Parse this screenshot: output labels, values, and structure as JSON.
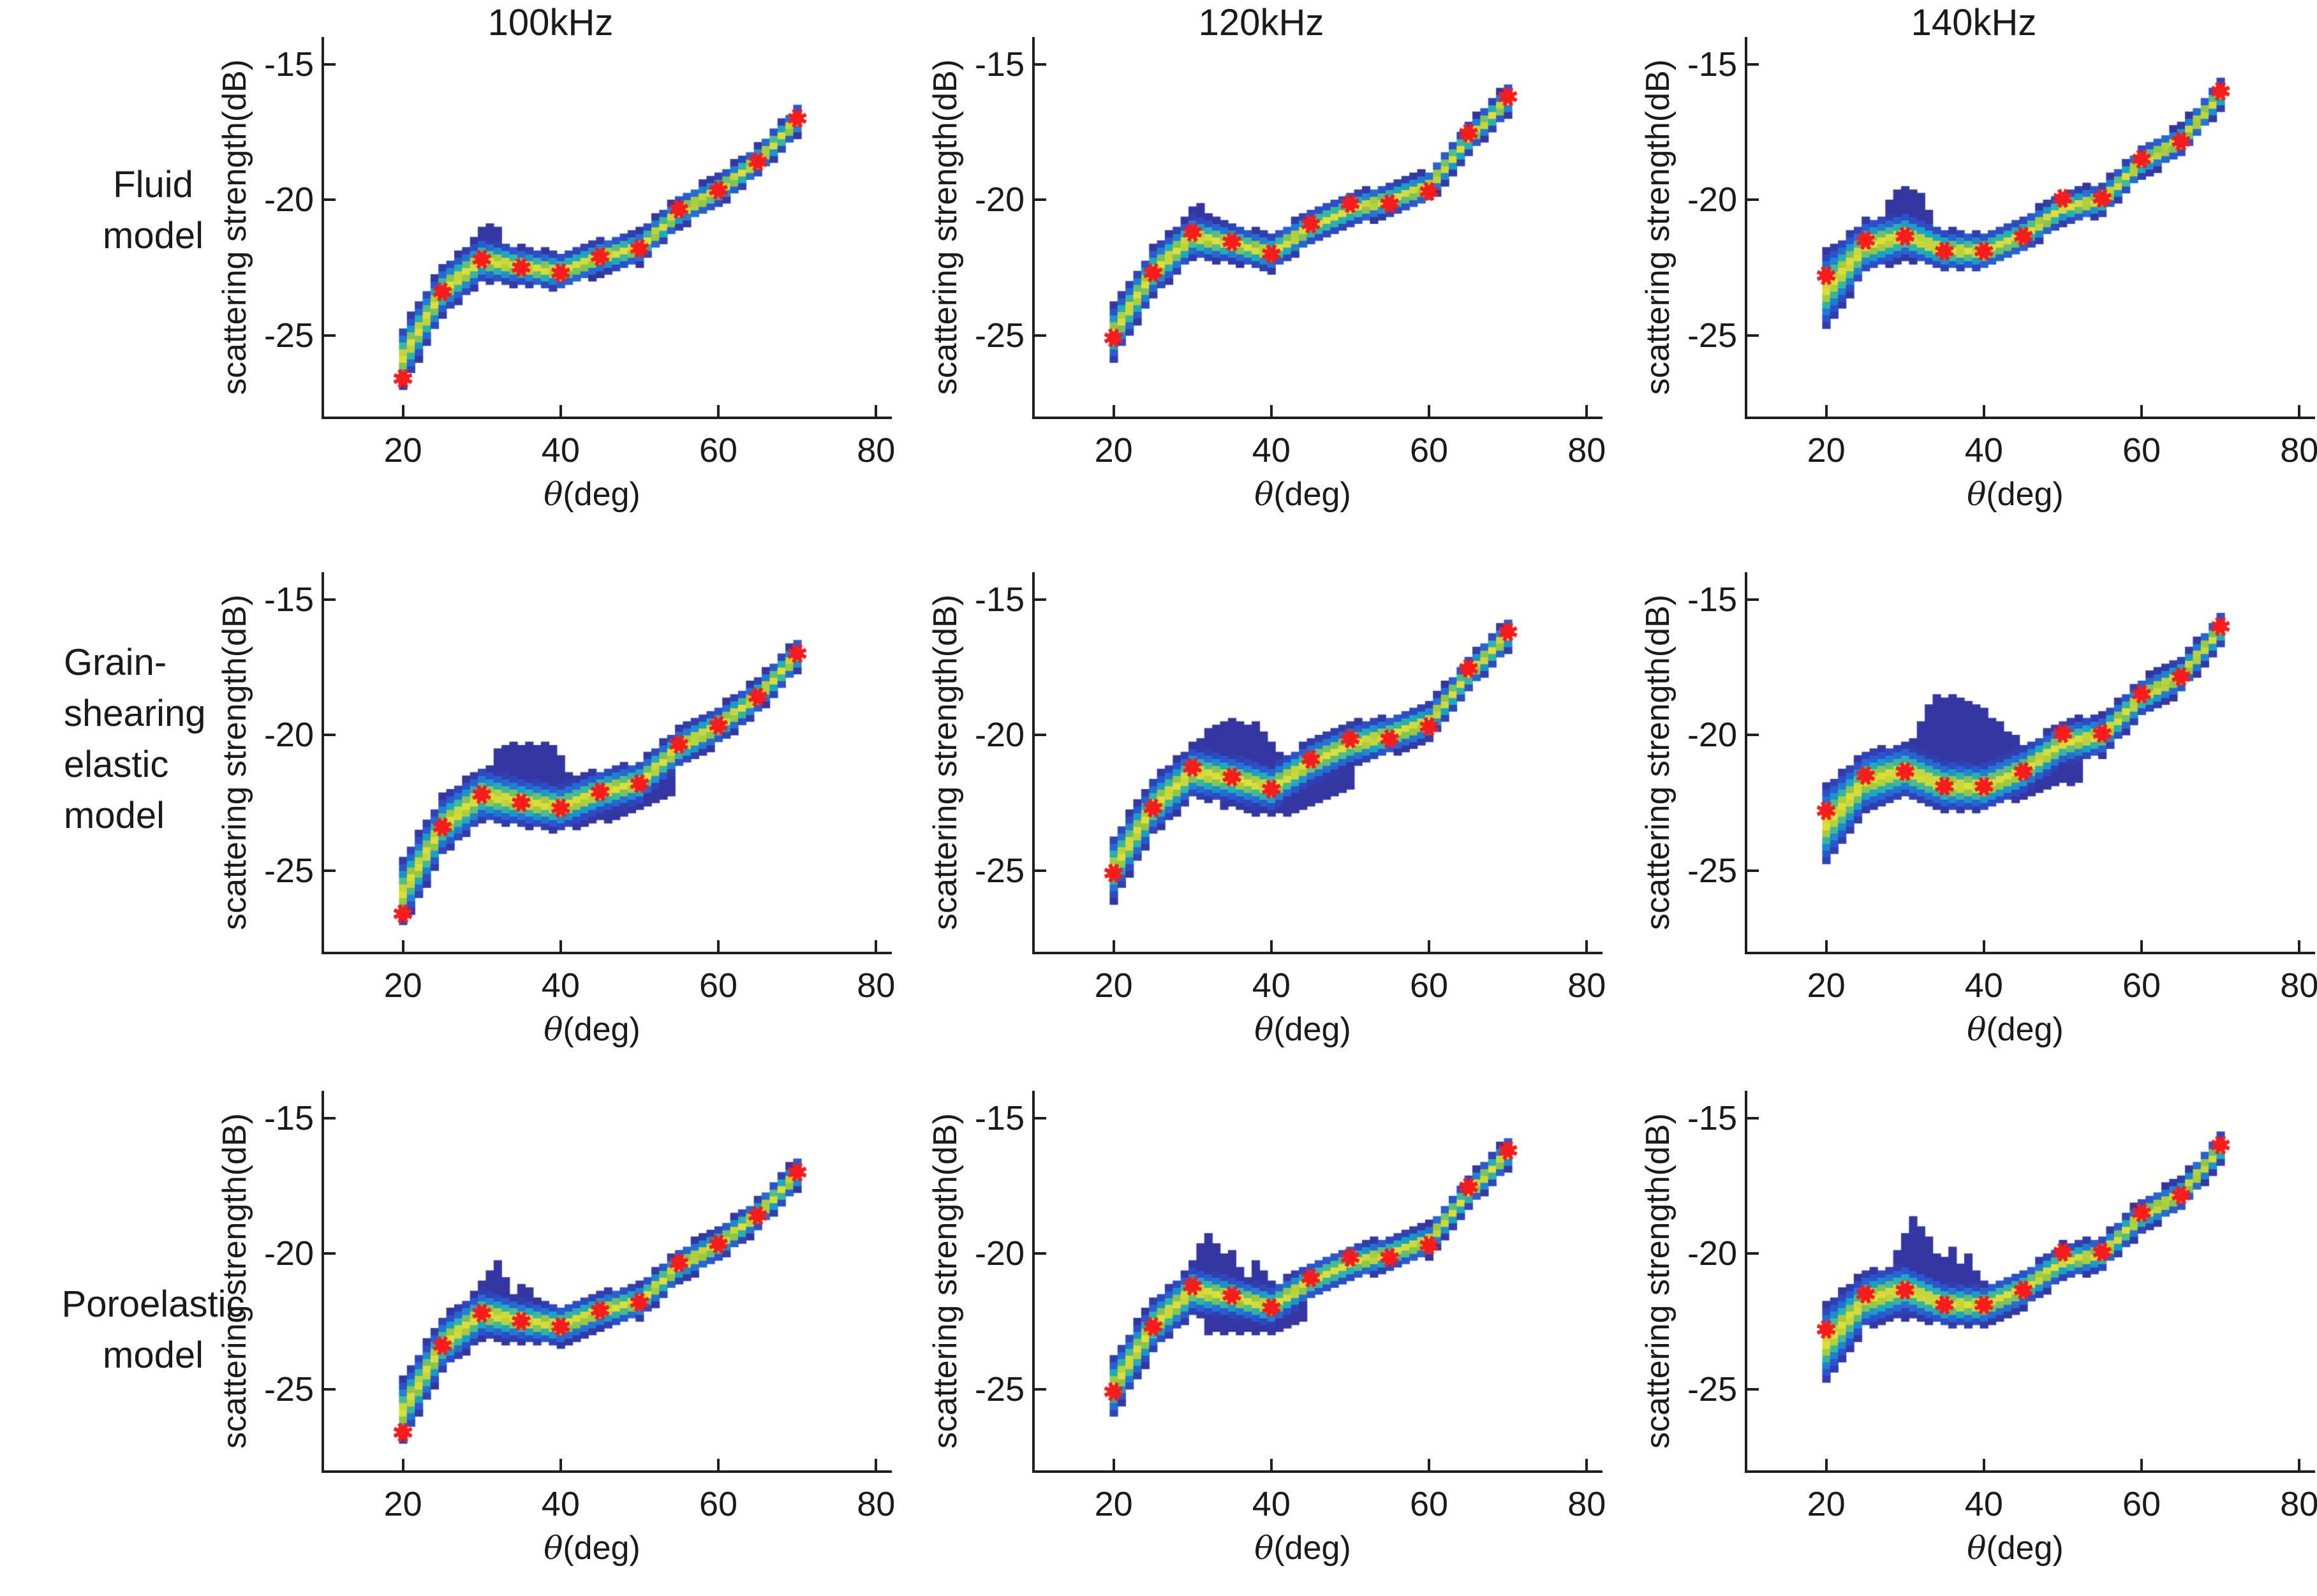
{
  "figure": {
    "background": "#ffffff",
    "axis_color": "#1f1f1f",
    "marker_color": "#fa1b1b",
    "colormap_stops": [
      [
        0.105,
        "#35349d"
      ],
      [
        0.3,
        "#2c51d0"
      ],
      [
        0.48,
        "#2079d6"
      ],
      [
        0.62,
        "#17a8c3"
      ],
      [
        0.76,
        "#3fba97"
      ],
      [
        0.88,
        "#9ac93f"
      ],
      [
        1.0,
        "#e0de38"
      ]
    ],
    "col_titles": [
      "100kHz",
      "120kHz",
      "140kHz"
    ],
    "row_labels": [
      {
        "lines": [
          "Fluid",
          "model"
        ],
        "align": "center"
      },
      {
        "lines": [
          "Grain-",
          "shearing",
          "elastic",
          "model"
        ],
        "align": "left"
      },
      {
        "lines": [
          "Poroelastic",
          "model"
        ],
        "align": "center"
      }
    ],
    "xlabel_theta": "θ",
    "xlabel_rest": "(deg)",
    "ylabel": "scattering strength(dB)",
    "xtick_labels": [
      "20",
      "40",
      "60",
      "80"
    ],
    "ytick_labels": [
      "-15",
      "-20",
      "-25"
    ]
  },
  "chart_data": [
    {
      "type": "heatmap",
      "title": "100kHz",
      "row_label": "Fluid model",
      "xlabel": "θ(deg)",
      "ylabel": "scattering strength(dB)",
      "xlim": [
        10,
        82
      ],
      "ylim": [
        -28,
        -14
      ],
      "xticks": [
        20,
        40,
        60,
        80
      ],
      "yticks": [
        -15,
        -20,
        -25
      ],
      "grid": false,
      "legend": null,
      "theta": [
        20,
        25,
        30,
        35,
        40,
        45,
        50,
        55,
        60,
        65,
        70
      ],
      "markers_db": [
        -26.6,
        -23.4,
        -22.2,
        -22.5,
        -22.7,
        -22.1,
        -21.8,
        -20.35,
        -19.65,
        -18.6,
        -17.0
      ],
      "band_center": [
        -25.8,
        -23.35,
        -22.2,
        -22.45,
        -22.65,
        -22.1,
        -21.75,
        -20.45,
        -19.65,
        -18.55,
        -17.05
      ],
      "band_sigma": [
        0.55,
        0.45,
        0.4,
        0.34,
        0.33,
        0.31,
        0.3,
        0.29,
        0.29,
        0.28,
        0.28
      ],
      "bump_top": [
        [
          28,
          -21.9
        ],
        [
          29,
          -21.4
        ],
        [
          30,
          -21.1
        ],
        [
          31,
          -20.9
        ],
        [
          32,
          -21.0
        ],
        [
          33,
          -21.6
        ],
        [
          34,
          -22.0
        ]
      ],
      "sag_bottom": null
    },
    {
      "type": "heatmap",
      "title": "120kHz",
      "row_label": "Fluid model",
      "xlabel": "θ(deg)",
      "ylabel": "scattering strength(dB)",
      "xlim": [
        10,
        82
      ],
      "ylim": [
        -28,
        -14
      ],
      "xticks": [
        20,
        40,
        60,
        80
      ],
      "yticks": [
        -15,
        -20,
        -25
      ],
      "grid": false,
      "legend": null,
      "theta": [
        20,
        25,
        30,
        35,
        40,
        45,
        50,
        55,
        60,
        65,
        70
      ],
      "markers_db": [
        -25.1,
        -22.7,
        -21.2,
        -21.55,
        -22.0,
        -20.9,
        -20.15,
        -20.15,
        -19.7,
        -17.55,
        -16.2
      ],
      "band_center": [
        -24.9,
        -22.65,
        -21.35,
        -21.6,
        -21.95,
        -21.0,
        -20.35,
        -20.0,
        -19.5,
        -17.75,
        -16.3
      ],
      "band_sigma": [
        0.5,
        0.44,
        0.4,
        0.34,
        0.33,
        0.31,
        0.3,
        0.29,
        0.29,
        0.28,
        0.28
      ],
      "bump_top": [
        [
          27,
          -21.6
        ],
        [
          28,
          -21.0
        ],
        [
          29,
          -20.5
        ],
        [
          30,
          -20.25
        ],
        [
          31,
          -20.2
        ],
        [
          32,
          -20.6
        ],
        [
          33,
          -21.0
        ],
        [
          34,
          -21.3
        ]
      ],
      "sag_bottom": null
    },
    {
      "type": "heatmap",
      "title": "140kHz",
      "row_label": "Fluid model",
      "xlabel": "θ(deg)",
      "ylabel": "scattering strength(dB)",
      "xlim": [
        10,
        82
      ],
      "ylim": [
        -28,
        -14
      ],
      "xticks": [
        20,
        40,
        60,
        80
      ],
      "yticks": [
        -15,
        -20,
        -25
      ],
      "grid": false,
      "legend": null,
      "theta": [
        20,
        25,
        30,
        35,
        40,
        45,
        50,
        55,
        60,
        65,
        70
      ],
      "markers_db": [
        -22.8,
        -21.5,
        -21.35,
        -21.9,
        -21.9,
        -21.35,
        -19.95,
        -19.95,
        -18.5,
        -17.85,
        -16.0
      ],
      "band_center": [
        -23.3,
        -21.7,
        -21.3,
        -21.85,
        -21.9,
        -21.3,
        -20.3,
        -20.0,
        -18.6,
        -17.8,
        -16.1
      ],
      "band_sigma": [
        0.68,
        0.48,
        0.42,
        0.36,
        0.34,
        0.32,
        0.3,
        0.29,
        0.29,
        0.28,
        0.28
      ],
      "bump_top": [
        [
          26,
          -21.1
        ],
        [
          27,
          -20.5
        ],
        [
          28,
          -20.0
        ],
        [
          29,
          -19.7
        ],
        [
          30,
          -19.5
        ],
        [
          31,
          -19.5
        ],
        [
          32,
          -19.8
        ],
        [
          33,
          -20.4
        ],
        [
          34,
          -21.0
        ],
        [
          35,
          -21.4
        ]
      ],
      "sag_bottom": null
    },
    {
      "type": "heatmap",
      "title": "",
      "row_label": "Grain-shearing elastic model",
      "xlabel": "θ(deg)",
      "ylabel": "scattering strength(dB)",
      "xlim": [
        10,
        82
      ],
      "ylim": [
        -28,
        -14
      ],
      "xticks": [
        20,
        40,
        60,
        80
      ],
      "yticks": [
        -15,
        -20,
        -25
      ],
      "grid": false,
      "legend": null,
      "theta": [
        20,
        25,
        30,
        35,
        40,
        45,
        50,
        55,
        60,
        65,
        70
      ],
      "markers_db": [
        -26.6,
        -23.4,
        -22.2,
        -22.5,
        -22.7,
        -22.1,
        -21.8,
        -20.35,
        -19.65,
        -18.6,
        -17.0
      ],
      "band_center": [
        -25.8,
        -23.35,
        -22.2,
        -22.45,
        -22.65,
        -22.1,
        -21.75,
        -20.45,
        -19.65,
        -18.55,
        -17.05
      ],
      "band_sigma": [
        0.62,
        0.52,
        0.48,
        0.44,
        0.42,
        0.4,
        0.38,
        0.35,
        0.33,
        0.31,
        0.3
      ],
      "bump_top": [
        [
          30,
          -21.8
        ],
        [
          31,
          -21.2
        ],
        [
          32,
          -20.6
        ],
        [
          33,
          -20.3
        ],
        [
          36,
          -20.25
        ],
        [
          39,
          -20.3
        ],
        [
          40,
          -20.8
        ],
        [
          41,
          -21.4
        ],
        [
          42,
          -21.9
        ]
      ],
      "sag_bottom": [
        [
          34,
          -23.0
        ],
        [
          38,
          -23.3
        ],
        [
          42,
          -23.4
        ],
        [
          46,
          -23.2
        ],
        [
          50,
          -22.8
        ],
        [
          54,
          -22.2
        ]
      ]
    },
    {
      "type": "heatmap",
      "title": "",
      "row_label": "Grain-shearing elastic model",
      "xlabel": "θ(deg)",
      "ylabel": "scattering strength(dB)",
      "xlim": [
        10,
        82
      ],
      "ylim": [
        -28,
        -14
      ],
      "xticks": [
        20,
        40,
        60,
        80
      ],
      "yticks": [
        -15,
        -20,
        -25
      ],
      "grid": false,
      "legend": null,
      "theta": [
        20,
        25,
        30,
        35,
        40,
        45,
        50,
        55,
        60,
        65,
        70
      ],
      "markers_db": [
        -25.1,
        -22.7,
        -21.2,
        -21.55,
        -22.0,
        -20.9,
        -20.15,
        -20.15,
        -19.7,
        -17.55,
        -16.2
      ],
      "band_center": [
        -24.9,
        -22.65,
        -21.35,
        -21.6,
        -21.95,
        -21.0,
        -20.35,
        -20.0,
        -19.5,
        -17.75,
        -16.3
      ],
      "band_sigma": [
        0.58,
        0.5,
        0.46,
        0.44,
        0.42,
        0.4,
        0.38,
        0.35,
        0.33,
        0.31,
        0.3
      ],
      "bump_top": [
        [
          29,
          -21.1
        ],
        [
          30,
          -20.6
        ],
        [
          31,
          -20.1
        ],
        [
          32,
          -19.7
        ],
        [
          33,
          -19.5
        ],
        [
          36,
          -19.4
        ],
        [
          38,
          -19.6
        ],
        [
          40,
          -20.2
        ],
        [
          42,
          -20.8
        ],
        [
          44,
          -21.3
        ]
      ],
      "sag_bottom": [
        [
          34,
          -22.7
        ],
        [
          38,
          -22.9
        ],
        [
          42,
          -22.9
        ],
        [
          46,
          -22.6
        ],
        [
          50,
          -22.1
        ]
      ]
    },
    {
      "type": "heatmap",
      "title": "",
      "row_label": "Grain-shearing elastic model",
      "xlabel": "θ(deg)",
      "ylabel": "scattering strength(dB)",
      "xlim": [
        10,
        82
      ],
      "ylim": [
        -28,
        -14
      ],
      "xticks": [
        20,
        40,
        60,
        80
      ],
      "yticks": [
        -15,
        -20,
        -25
      ],
      "grid": false,
      "legend": null,
      "theta": [
        20,
        25,
        30,
        35,
        40,
        45,
        50,
        55,
        60,
        65,
        70
      ],
      "markers_db": [
        -22.8,
        -21.5,
        -21.35,
        -21.9,
        -21.9,
        -21.35,
        -19.95,
        -19.95,
        -18.5,
        -17.85,
        -16.0
      ],
      "band_center": [
        -23.3,
        -21.7,
        -21.3,
        -21.85,
        -21.9,
        -21.3,
        -20.3,
        -20.0,
        -18.6,
        -17.8,
        -16.1
      ],
      "band_sigma": [
        0.72,
        0.54,
        0.48,
        0.46,
        0.44,
        0.42,
        0.4,
        0.36,
        0.33,
        0.31,
        0.3
      ],
      "bump_top": [
        [
          30,
          -20.6
        ],
        [
          31,
          -20.0
        ],
        [
          32,
          -19.4
        ],
        [
          33,
          -18.9
        ],
        [
          34,
          -18.6
        ],
        [
          36,
          -18.5
        ],
        [
          40,
          -18.9
        ],
        [
          42,
          -19.6
        ],
        [
          44,
          -20.1
        ],
        [
          46,
          -20.4
        ]
      ],
      "sag_bottom": [
        [
          32,
          -22.4
        ],
        [
          36,
          -22.7
        ],
        [
          40,
          -22.7
        ],
        [
          44,
          -22.4
        ],
        [
          48,
          -22.0
        ],
        [
          52,
          -21.7
        ]
      ]
    },
    {
      "type": "heatmap",
      "title": "",
      "row_label": "Poroelastic model",
      "xlabel": "θ(deg)",
      "ylabel": "scattering strength(dB)",
      "xlim": [
        10,
        82
      ],
      "ylim": [
        -28,
        -14
      ],
      "xticks": [
        20,
        40,
        60,
        80
      ],
      "yticks": [
        -15,
        -20,
        -25
      ],
      "grid": false,
      "legend": null,
      "theta": [
        20,
        25,
        30,
        35,
        40,
        45,
        50,
        55,
        60,
        65,
        70
      ],
      "markers_db": [
        -26.6,
        -23.4,
        -22.2,
        -22.5,
        -22.7,
        -22.1,
        -21.8,
        -20.35,
        -19.65,
        -18.6,
        -17.0
      ],
      "band_center": [
        -25.8,
        -23.35,
        -22.2,
        -22.45,
        -22.65,
        -22.1,
        -21.75,
        -20.45,
        -19.65,
        -18.55,
        -17.05
      ],
      "band_sigma": [
        0.58,
        0.48,
        0.44,
        0.38,
        0.36,
        0.33,
        0.32,
        0.3,
        0.3,
        0.29,
        0.29
      ],
      "bump_top": [
        [
          28,
          -22.0
        ],
        [
          29,
          -21.4
        ],
        [
          30,
          -20.9
        ],
        [
          31,
          -20.5
        ],
        [
          32,
          -20.35
        ],
        [
          33,
          -20.9
        ],
        [
          34,
          -21.4
        ],
        [
          35,
          -21.0
        ],
        [
          36,
          -21.3
        ],
        [
          37,
          -21.8
        ],
        [
          38,
          -22.1
        ]
      ],
      "sag_bottom": [
        [
          32,
          -23.3
        ],
        [
          36,
          -23.3
        ],
        [
          40,
          -23.3
        ],
        [
          44,
          -22.8
        ]
      ]
    },
    {
      "type": "heatmap",
      "title": "",
      "row_label": "Poroelastic model",
      "xlabel": "θ(deg)",
      "ylabel": "scattering strength(dB)",
      "xlim": [
        10,
        82
      ],
      "ylim": [
        -28,
        -14
      ],
      "xticks": [
        20,
        40,
        60,
        80
      ],
      "yticks": [
        -15,
        -20,
        -25
      ],
      "grid": false,
      "legend": null,
      "theta": [
        20,
        25,
        30,
        35,
        40,
        45,
        50,
        55,
        60,
        65,
        70
      ],
      "markers_db": [
        -25.1,
        -22.7,
        -21.2,
        -21.55,
        -22.0,
        -20.9,
        -20.15,
        -20.15,
        -19.7,
        -17.55,
        -16.2
      ],
      "band_center": [
        -24.9,
        -22.65,
        -21.35,
        -21.6,
        -21.95,
        -21.0,
        -20.35,
        -20.0,
        -19.5,
        -17.75,
        -16.3
      ],
      "band_sigma": [
        0.55,
        0.47,
        0.43,
        0.38,
        0.36,
        0.33,
        0.32,
        0.3,
        0.3,
        0.29,
        0.29
      ],
      "bump_top": [
        [
          28,
          -21.3
        ],
        [
          29,
          -20.7
        ],
        [
          30,
          -20.2
        ],
        [
          31,
          -19.6
        ],
        [
          32,
          -19.35
        ],
        [
          33,
          -19.6
        ],
        [
          34,
          -20.1
        ],
        [
          35,
          -19.9
        ],
        [
          36,
          -20.5
        ],
        [
          37,
          -20.9
        ],
        [
          38,
          -20.2
        ],
        [
          39,
          -20.6
        ],
        [
          40,
          -21.1
        ],
        [
          41,
          -21.5
        ]
      ],
      "sag_bottom": [
        [
          32,
          -22.9
        ],
        [
          36,
          -23.0
        ],
        [
          40,
          -22.9
        ],
        [
          44,
          -22.4
        ]
      ]
    },
    {
      "type": "heatmap",
      "title": "",
      "row_label": "Poroelastic model",
      "xlabel": "θ(deg)",
      "ylabel": "scattering strength(dB)",
      "xlim": [
        10,
        82
      ],
      "ylim": [
        -28,
        -14
      ],
      "xticks": [
        20,
        40,
        60,
        80
      ],
      "yticks": [
        -15,
        -20,
        -25
      ],
      "grid": false,
      "legend": null,
      "theta": [
        20,
        25,
        30,
        35,
        40,
        45,
        50,
        55,
        60,
        65,
        70
      ],
      "markers_db": [
        -22.8,
        -21.5,
        -21.35,
        -21.9,
        -21.9,
        -21.35,
        -19.95,
        -19.95,
        -18.5,
        -17.85,
        -16.0
      ],
      "band_center": [
        -23.3,
        -21.7,
        -21.3,
        -21.85,
        -21.9,
        -21.3,
        -20.3,
        -20.0,
        -18.6,
        -17.8,
        -16.1
      ],
      "band_sigma": [
        0.7,
        0.5,
        0.45,
        0.4,
        0.37,
        0.34,
        0.32,
        0.3,
        0.3,
        0.29,
        0.29
      ],
      "bump_top": [
        [
          28,
          -20.7
        ],
        [
          29,
          -19.9
        ],
        [
          30,
          -19.3
        ],
        [
          31,
          -18.6
        ],
        [
          32,
          -18.9
        ],
        [
          33,
          -19.3
        ],
        [
          34,
          -19.9
        ],
        [
          35,
          -20.2
        ],
        [
          36,
          -19.8
        ],
        [
          37,
          -20.3
        ],
        [
          38,
          -19.9
        ],
        [
          39,
          -20.5
        ],
        [
          40,
          -20.9
        ],
        [
          41,
          -21.2
        ]
      ],
      "sag_bottom": [
        [
          30,
          -22.4
        ],
        [
          34,
          -22.6
        ],
        [
          38,
          -22.5
        ],
        [
          42,
          -22.2
        ]
      ]
    }
  ]
}
